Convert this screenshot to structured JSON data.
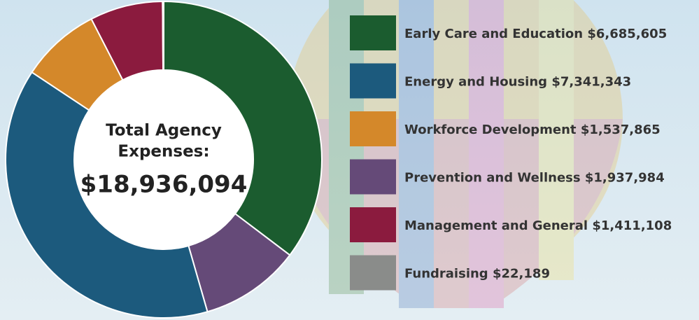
{
  "chart_data": {
    "type": "pie",
    "center_text": [
      "Total Agency",
      "Expenses:"
    ],
    "total": {
      "value": 18936094,
      "label": "$18,936,094"
    },
    "series": [
      {
        "name": "Early Care and Education",
        "color": "#1b5c2f",
        "values": [
          6685605
        ],
        "value_labels": [
          "$6,685,605"
        ]
      },
      {
        "name": "Energy and Housing",
        "color": "#1c5a7d",
        "values": [
          7341343
        ],
        "value_labels": [
          "$7,341,343"
        ]
      },
      {
        "name": "Workforce Development",
        "color": "#d4882a",
        "values": [
          1537865
        ],
        "value_labels": [
          "$1,537,865"
        ]
      },
      {
        "name": "Prevention and Wellness",
        "color": "#654a78",
        "values": [
          1937984
        ],
        "value_labels": [
          "$1,937,984"
        ]
      },
      {
        "name": "Management and General",
        "color": "#8b1b3e",
        "values": [
          1411108
        ],
        "value_labels": [
          "$1,411,108"
        ]
      },
      {
        "name": "Fundraising",
        "color": "#8a8c8a",
        "values": [
          22189
        ],
        "value_labels": [
          "$22,189"
        ]
      }
    ],
    "slice_order": [
      0,
      3,
      1,
      2,
      4,
      5
    ]
  }
}
